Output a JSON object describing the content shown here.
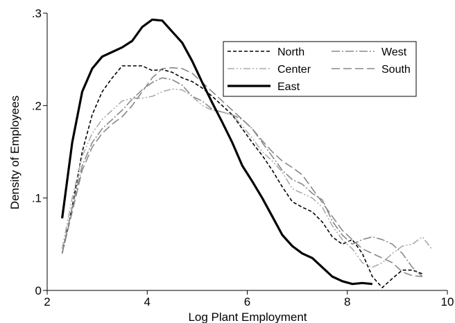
{
  "chart_data": {
    "type": "line",
    "xlabel": "Log Plant Employment",
    "ylabel": "Density of Employees",
    "xlim": [
      2,
      10
    ],
    "ylim": [
      0,
      0.3
    ],
    "x_ticks": [
      2,
      4,
      6,
      8,
      10
    ],
    "x_tick_labels": [
      "2",
      "4",
      "6",
      "8",
      "10"
    ],
    "y_ticks": [
      0,
      0.1,
      0.2,
      0.3
    ],
    "y_tick_labels": [
      "0",
      ".1",
      ".2",
      ".3"
    ],
    "grid": false,
    "legend_position": "top-right",
    "series": [
      {
        "name": "North",
        "color": "#000000",
        "width": 1.6,
        "dash": "5,3",
        "x": [
          2.3,
          2.5,
          2.7,
          2.9,
          3.1,
          3.3,
          3.5,
          3.7,
          3.9,
          4.1,
          4.3,
          4.5,
          4.7,
          4.9,
          5.1,
          5.3,
          5.5,
          5.7,
          5.9,
          6.1,
          6.3,
          6.5,
          6.7,
          6.9,
          7.1,
          7.3,
          7.5,
          7.7,
          7.9,
          8.1,
          8.3,
          8.5,
          8.7,
          8.9,
          9.1,
          9.3,
          9.5
        ],
        "y": [
          0.04,
          0.09,
          0.15,
          0.19,
          0.215,
          0.23,
          0.243,
          0.243,
          0.243,
          0.238,
          0.239,
          0.236,
          0.23,
          0.226,
          0.219,
          0.21,
          0.2,
          0.19,
          0.175,
          0.16,
          0.146,
          0.13,
          0.112,
          0.096,
          0.09,
          0.085,
          0.074,
          0.058,
          0.05,
          0.055,
          0.04,
          0.015,
          0.003,
          0.013,
          0.022,
          0.022,
          0.018
        ]
      },
      {
        "name": "West",
        "color": "#888888",
        "width": 1.6,
        "dash": "12,3,2,3",
        "x": [
          2.3,
          2.5,
          2.7,
          2.9,
          3.1,
          3.3,
          3.5,
          3.7,
          3.9,
          4.1,
          4.3,
          4.5,
          4.7,
          4.9,
          5.1,
          5.3,
          5.5,
          5.7,
          5.9,
          6.1,
          6.3,
          6.5,
          6.7,
          6.9,
          7.1,
          7.3,
          7.5,
          7.7,
          7.9,
          8.1,
          8.3,
          8.5,
          8.7,
          8.9,
          9.1,
          9.3,
          9.5
        ],
        "y": [
          0.04,
          0.09,
          0.135,
          0.16,
          0.175,
          0.185,
          0.195,
          0.207,
          0.217,
          0.225,
          0.23,
          0.228,
          0.222,
          0.21,
          0.205,
          0.196,
          0.193,
          0.19,
          0.185,
          0.175,
          0.16,
          0.145,
          0.13,
          0.12,
          0.115,
          0.105,
          0.098,
          0.075,
          0.06,
          0.05,
          0.055,
          0.058,
          0.055,
          0.05,
          0.04,
          0.025,
          0.015
        ]
      },
      {
        "name": "Center",
        "color": "#aaaaaa",
        "width": 1.6,
        "dash": "10,3,2,3,2,3",
        "x": [
          2.3,
          2.5,
          2.7,
          2.9,
          3.1,
          3.3,
          3.5,
          3.7,
          3.9,
          4.1,
          4.3,
          4.5,
          4.7,
          4.9,
          5.1,
          5.3,
          5.5,
          5.7,
          5.9,
          6.1,
          6.3,
          6.5,
          6.7,
          6.9,
          7.1,
          7.3,
          7.5,
          7.7,
          7.9,
          8.1,
          8.3,
          8.5,
          8.7,
          8.9,
          9.1,
          9.3,
          9.5,
          9.7
        ],
        "y": [
          0.045,
          0.1,
          0.145,
          0.17,
          0.185,
          0.195,
          0.205,
          0.208,
          0.208,
          0.21,
          0.215,
          0.218,
          0.217,
          0.21,
          0.2,
          0.195,
          0.193,
          0.19,
          0.178,
          0.165,
          0.15,
          0.14,
          0.128,
          0.11,
          0.105,
          0.1,
          0.09,
          0.07,
          0.055,
          0.045,
          0.03,
          0.025,
          0.03,
          0.04,
          0.048,
          0.05,
          0.058,
          0.044
        ]
      },
      {
        "name": "South",
        "color": "#888888",
        "width": 1.6,
        "dash": "12,5",
        "x": [
          2.3,
          2.5,
          2.7,
          2.9,
          3.1,
          3.3,
          3.5,
          3.7,
          3.9,
          4.1,
          4.3,
          4.5,
          4.7,
          4.9,
          5.1,
          5.3,
          5.5,
          5.7,
          5.9,
          6.1,
          6.3,
          6.5,
          6.7,
          6.9,
          7.1,
          7.3,
          7.5,
          7.7,
          7.9,
          8.1,
          8.3,
          8.5,
          8.7,
          8.9,
          9.1,
          9.3,
          9.5
        ],
        "y": [
          0.04,
          0.085,
          0.13,
          0.155,
          0.17,
          0.18,
          0.188,
          0.2,
          0.215,
          0.23,
          0.24,
          0.241,
          0.24,
          0.235,
          0.225,
          0.215,
          0.205,
          0.195,
          0.185,
          0.175,
          0.162,
          0.15,
          0.14,
          0.133,
          0.125,
          0.11,
          0.095,
          0.08,
          0.065,
          0.055,
          0.045,
          0.04,
          0.035,
          0.03,
          0.02,
          0.016,
          0.015
        ]
      },
      {
        "name": "East",
        "color": "#000000",
        "width": 3.2,
        "dash": "",
        "x": [
          2.3,
          2.5,
          2.7,
          2.9,
          3.1,
          3.3,
          3.5,
          3.7,
          3.9,
          4.1,
          4.3,
          4.5,
          4.7,
          4.9,
          5.1,
          5.3,
          5.5,
          5.7,
          5.9,
          6.1,
          6.3,
          6.5,
          6.7,
          6.9,
          7.1,
          7.3,
          7.5,
          7.7,
          7.9,
          8.1,
          8.3,
          8.5
        ],
        "y": [
          0.078,
          0.16,
          0.215,
          0.24,
          0.253,
          0.258,
          0.263,
          0.27,
          0.285,
          0.293,
          0.292,
          0.28,
          0.268,
          0.248,
          0.225,
          0.203,
          0.182,
          0.16,
          0.135,
          0.118,
          0.1,
          0.08,
          0.06,
          0.048,
          0.04,
          0.035,
          0.025,
          0.015,
          0.01,
          0.007,
          0.008,
          0.007
        ]
      }
    ],
    "legend_order": [
      "North",
      "West",
      "Center",
      "South",
      "East"
    ]
  }
}
